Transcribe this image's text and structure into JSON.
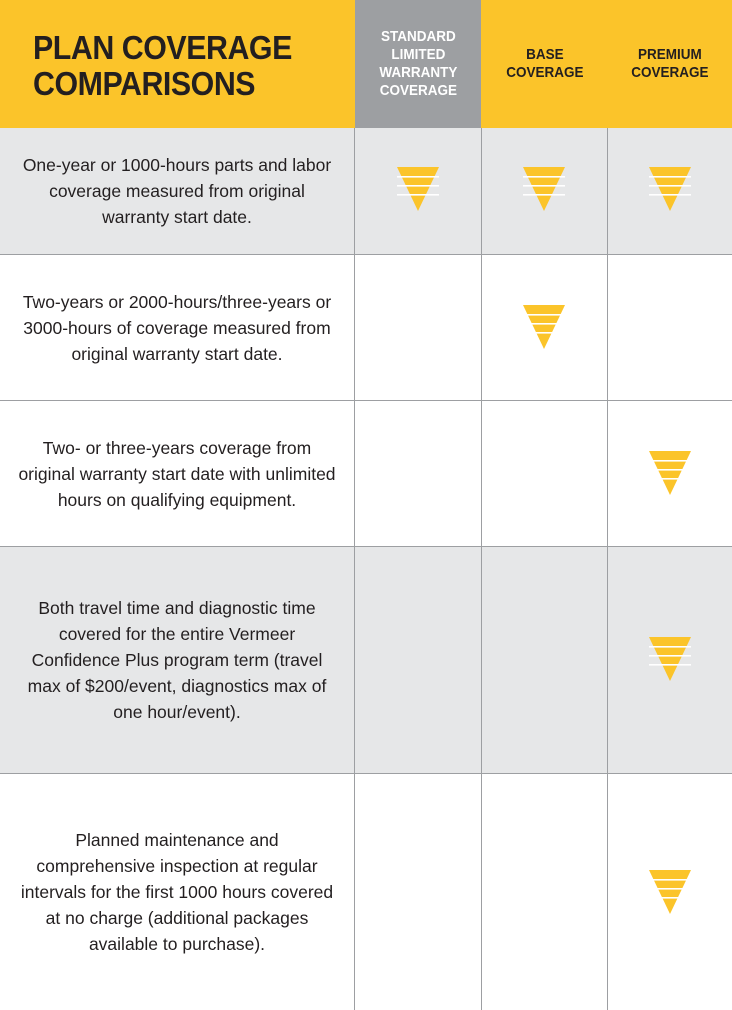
{
  "header": {
    "title_line1": "PLAN COVERAGE",
    "title_line2": "COMPARISONS",
    "columns": {
      "standard": "STANDARD\nLIMITED\nWARRANTY\nCOVERAGE",
      "base": "BASE\nCOVERAGE",
      "premium": "PREMIUM\nCOVERAGE"
    }
  },
  "rows": [
    {
      "text": "One-year or 1000-hours parts and labor coverage measured from original warranty start date.",
      "standard": true,
      "base": true,
      "premium": true
    },
    {
      "text": "Two-years or 2000-hours/three-years or 3000-hours of coverage measured from original warranty start date.",
      "standard": false,
      "base": true,
      "premium": false
    },
    {
      "text": "Two- or three-years coverage from original warranty start date with unlimited hours on qualifying equipment.",
      "standard": false,
      "base": false,
      "premium": true
    },
    {
      "text": "Both travel time and diagnostic time covered for the entire Vermeer Confidence Plus program term (travel max of $200/event, diagnostics max of one hour/event).",
      "standard": false,
      "base": false,
      "premium": true
    },
    {
      "text": "Planned maintenance and comprehensive inspection at regular intervals for the first 1000 hours covered at no charge (additional packages available to purchase).",
      "standard": false,
      "base": false,
      "premium": true
    }
  ],
  "colors": {
    "accent": "#fbc42a",
    "standard_header": "#9d9fa2",
    "row_shade": "#e6e7e8",
    "mark": "#fbc42a"
  },
  "icons": {
    "coverage_mark": "striped-triangle-down-icon"
  }
}
